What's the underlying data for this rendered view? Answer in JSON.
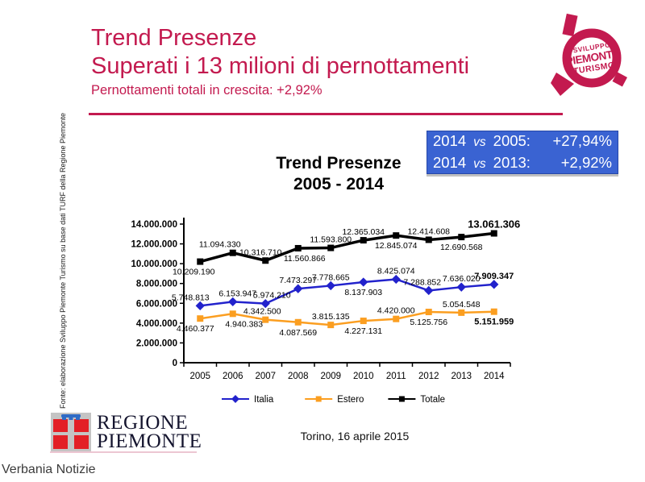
{
  "page": {
    "watermark": "Verbania Notizie",
    "background": "#FFFFFF"
  },
  "header": {
    "title_line1": "Trend Presenze",
    "title_line2": "Superati i 13 milioni di pernottamenti",
    "subtitle": "Pernottamenti totali in crescita: +2,92%",
    "accent_color": "#C31A4F"
  },
  "logo_top_right": {
    "line1": "SVILUPPO",
    "line2": "PIEMONTE",
    "line3": "TURISMO"
  },
  "comparison_box": {
    "bg_color": "#3A63D2",
    "rows": [
      {
        "year_a": "2014",
        "vs": "vs",
        "year_b": "2005:",
        "value": "+27,94%"
      },
      {
        "year_a": "2014",
        "vs": "vs",
        "year_b": "2013:",
        "value": "+2,92%"
      }
    ]
  },
  "chart_data": {
    "type": "line",
    "title_line1": "Trend Presenze",
    "title_line2": "2005 - 2014",
    "categories": [
      "2005",
      "2006",
      "2007",
      "2008",
      "2009",
      "2010",
      "2011",
      "2012",
      "2013",
      "2014"
    ],
    "ylim": [
      0,
      14000000
    ],
    "ytick_step": 2000000,
    "ytick_labels": [
      "0",
      "2.000.000",
      "4.000.000",
      "6.000.000",
      "8.000.000",
      "10.000.000",
      "12.000.000",
      "14.000.000"
    ],
    "grid": false,
    "legend_position": "bottom",
    "series": [
      {
        "name": "Italia",
        "color": "#2222CC",
        "marker": "diamond",
        "values": [
          5748813,
          6153947,
          5974210,
          7473297,
          7778665,
          8137903,
          8425074,
          7288852,
          7636020,
          7909347
        ],
        "labels": [
          "5.748.813",
          "6.153.947",
          "5.974.210",
          "7.473.297",
          "7.778.665",
          "8.137.903",
          "8.425.074",
          "7.288.852",
          "7.636.020",
          "7.909.347"
        ],
        "label_side": [
          "above",
          "above",
          "above",
          "above",
          "above",
          "below",
          "above",
          "above",
          "above",
          "above"
        ],
        "label_dx": [
          -12,
          6,
          8,
          0,
          0,
          0,
          0,
          -8,
          0,
          0
        ]
      },
      {
        "name": "Estero",
        "color": "#FB9E20",
        "marker": "square",
        "values": [
          4460377,
          4940383,
          4342500,
          4087569,
          3815135,
          4227131,
          4420000,
          5125756,
          5054548,
          5151959
        ],
        "labels": [
          "4.460.377",
          "4.940.383",
          "4.342.500",
          "4.087.569",
          "3.815.135",
          "4.227.131",
          "4.420.000",
          "5.125.756",
          "5.054.548",
          "5.151.959"
        ],
        "label_side": [
          "below",
          "below",
          "above",
          "below",
          "above",
          "below",
          "above",
          "below",
          "above",
          "below"
        ],
        "label_dx": [
          -6,
          14,
          -4,
          0,
          0,
          0,
          0,
          0,
          0,
          0
        ]
      },
      {
        "name": "Totale",
        "color": "#000000",
        "marker": "square",
        "values": [
          10209190,
          11094330,
          10316710,
          11560866,
          11593800,
          12365034,
          12845074,
          12414608,
          12690568,
          13061306
        ],
        "labels": [
          "10.209.190",
          "11.094.330",
          "10.316.710",
          "11.560.866",
          "11.593.800",
          "12.365.034",
          "12.845.074",
          "12.414.608",
          "12.690.568",
          "13.061.306"
        ],
        "label_side": [
          "below",
          "above",
          "above",
          "below",
          "above",
          "above",
          "below",
          "above",
          "below",
          "above"
        ],
        "label_dx": [
          -8,
          -16,
          -6,
          8,
          0,
          0,
          0,
          0,
          0,
          0
        ]
      }
    ]
  },
  "source_note": "Fonte: elaborazione Sviluppo Piemonte Turismo su base dati TURF della Regione Piemonte",
  "footer": {
    "region_line1": "REGIONE",
    "region_line2": "PIEMONTE",
    "date_text": "Torino, 16 aprile 2015"
  }
}
